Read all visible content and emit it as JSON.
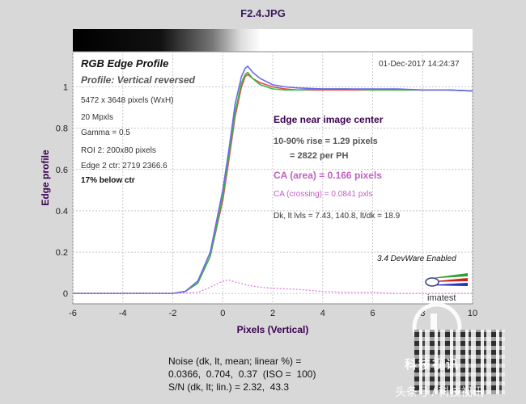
{
  "window_title": "F2.4.JPG",
  "chart_data": {
    "type": "line",
    "title": "RGB Edge Profile",
    "subtitle": "Profile: Vertical reversed",
    "timestamp": "01-Dec-2017 14:24:37",
    "xlabel": "Pixels (Vertical)",
    "ylabel": "Edge profile",
    "xlim": [
      -6,
      10
    ],
    "ylim": [
      -0.05,
      1.17
    ],
    "x_ticks": [
      -6,
      -4,
      -2,
      0,
      2,
      4,
      6,
      8,
      10
    ],
    "y_ticks": [
      0,
      0.2,
      0.4,
      0.6,
      0.8,
      1
    ],
    "grid": true,
    "info_lines": [
      "5472 x 3648 pixels (WxH)",
      "20 Mpxls",
      "Gamma = 0.5",
      "ROI 2: 200x80 pixels",
      "Edge 2 ctr: 2719   2366.6"
    ],
    "below_ctr": "17% below ctr",
    "annotations": {
      "heading": "Edge near image center",
      "rise": "10-90% rise = 1.29 pixels",
      "per_ph": "= 2822 per PH",
      "ca_area": "CA (area) = 0.166 pixels",
      "ca_crossing": "CA (crossing) = 0.0841 pxls",
      "levels": "Dk, lt lvls = 7.43, 140.8,  lt/dk = 18.9"
    },
    "software": "3.4  DevWare Enabled",
    "logo_text": "imatest",
    "series": [
      {
        "color": "#e04a4a",
        "x": [
          -6,
          -2,
          -1.5,
          -1,
          -0.5,
          0,
          0.25,
          0.5,
          0.75,
          0.9,
          1.0,
          1.2,
          1.5,
          2,
          2.5,
          3,
          4,
          5,
          6,
          7,
          8,
          9,
          10
        ],
        "y": [
          0,
          0,
          0.01,
          0.05,
          0.18,
          0.45,
          0.65,
          0.86,
          1.0,
          1.05,
          1.06,
          1.04,
          1.02,
          1.0,
          0.99,
          0.985,
          0.985,
          0.985,
          0.985,
          0.985,
          0.985,
          0.985,
          0.98
        ]
      },
      {
        "color": "#3cb83c",
        "x": [
          -6,
          -2,
          -1.5,
          -1,
          -0.5,
          0,
          0.25,
          0.5,
          0.75,
          0.9,
          1.0,
          1.2,
          1.5,
          2,
          2.5,
          3,
          4,
          5,
          6,
          7,
          8,
          9,
          10
        ],
        "y": [
          0,
          0,
          0.01,
          0.05,
          0.18,
          0.47,
          0.67,
          0.88,
          1.02,
          1.06,
          1.07,
          1.04,
          1.01,
          0.99,
          0.985,
          0.985,
          0.99,
          0.99,
          0.985,
          0.985,
          0.985,
          0.985,
          0.98
        ]
      },
      {
        "color": "#6a6af0",
        "x": [
          -6,
          -2,
          -1.5,
          -1,
          -0.5,
          0,
          0.25,
          0.5,
          0.75,
          0.9,
          1.0,
          1.2,
          1.5,
          2,
          2.5,
          3,
          4,
          5,
          6,
          7,
          8,
          9,
          10
        ],
        "y": [
          0,
          0,
          0.01,
          0.06,
          0.2,
          0.5,
          0.7,
          0.92,
          1.05,
          1.09,
          1.1,
          1.07,
          1.04,
          1.01,
          1.0,
          0.995,
          0.99,
          0.99,
          0.99,
          0.99,
          0.985,
          0.985,
          0.98
        ]
      },
      {
        "color": "#e080e0",
        "dashed": true,
        "x": [
          -6,
          -2,
          -1,
          -0.5,
          0,
          0.25,
          0.5,
          1,
          1.5,
          2,
          3,
          4,
          5,
          6,
          7,
          8,
          9,
          10
        ],
        "y": [
          0,
          0,
          0.005,
          0.03,
          0.06,
          0.065,
          0.055,
          0.04,
          0.03,
          0.025,
          0.02,
          0.01,
          0.005,
          0.005,
          0,
          0,
          0,
          0
        ]
      }
    ]
  },
  "noise": {
    "line1": "Noise (dk, lt, mean; linear %) =",
    "line2": "0.0366,  0.704,  0.37  (ISO =  100)",
    "line3": "S/N (dk, lt; lin.) = 2.32,  43.3"
  },
  "watermark": {
    "brand": "科技视讯",
    "source": "头条号 / 科技视讯"
  }
}
